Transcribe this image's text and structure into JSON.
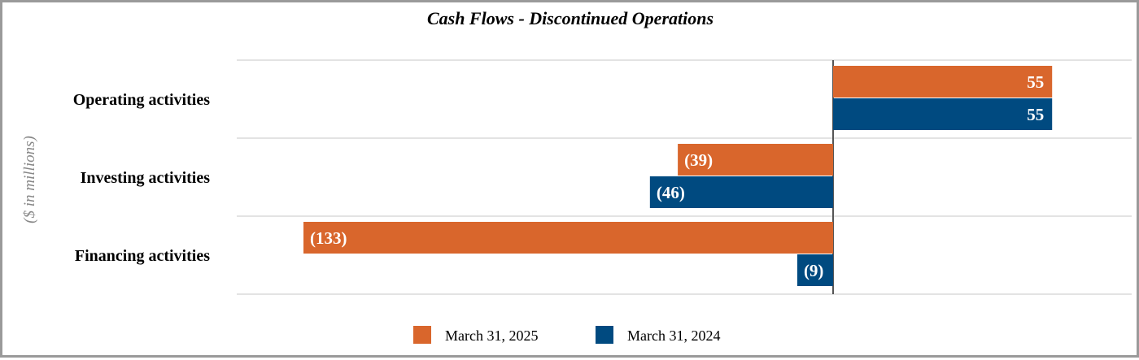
{
  "chart_data": {
    "type": "bar",
    "orientation": "horizontal",
    "title": "Cash Flows - Discontinued Operations",
    "ylabel": "($ in millions)",
    "categories": [
      "Operating activities",
      "Investing activities",
      "Financing activities"
    ],
    "series": [
      {
        "name": "March 31, 2025",
        "color": "#d9662c",
        "values": [
          55,
          -39,
          -133
        ],
        "labels": [
          "55",
          "(39)",
          "(133)"
        ]
      },
      {
        "name": "March 31, 2024",
        "color": "#004a80",
        "values": [
          55,
          -46,
          -9
        ],
        "labels": [
          "55",
          "(46)",
          "(9)"
        ]
      }
    ],
    "xlim": [
      -133,
      55
    ],
    "grid": true,
    "legend_position": "bottom"
  }
}
